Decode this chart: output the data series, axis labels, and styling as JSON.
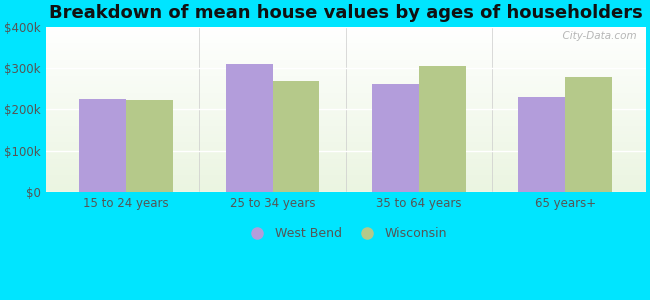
{
  "title": "Breakdown of mean house values by ages of householders",
  "categories": [
    "15 to 24 years",
    "25 to 34 years",
    "35 to 64 years",
    "65 years+"
  ],
  "west_bend_values": [
    225000,
    310000,
    262000,
    230000
  ],
  "wisconsin_values": [
    223000,
    268000,
    305000,
    278000
  ],
  "west_bend_color": "#b39ddb",
  "wisconsin_color": "#b5c98a",
  "background_color": "#00e5ff",
  "ylim": [
    0,
    400000
  ],
  "yticks": [
    0,
    100000,
    200000,
    300000,
    400000
  ],
  "ytick_labels": [
    "$0",
    "$100k",
    "$200k",
    "$300k",
    "$400k"
  ],
  "legend_labels": [
    "West Bend",
    "Wisconsin"
  ],
  "watermark": "  City-Data.com",
  "bar_width": 0.32,
  "title_fontsize": 13,
  "tick_fontsize": 8.5,
  "legend_fontsize": 9
}
